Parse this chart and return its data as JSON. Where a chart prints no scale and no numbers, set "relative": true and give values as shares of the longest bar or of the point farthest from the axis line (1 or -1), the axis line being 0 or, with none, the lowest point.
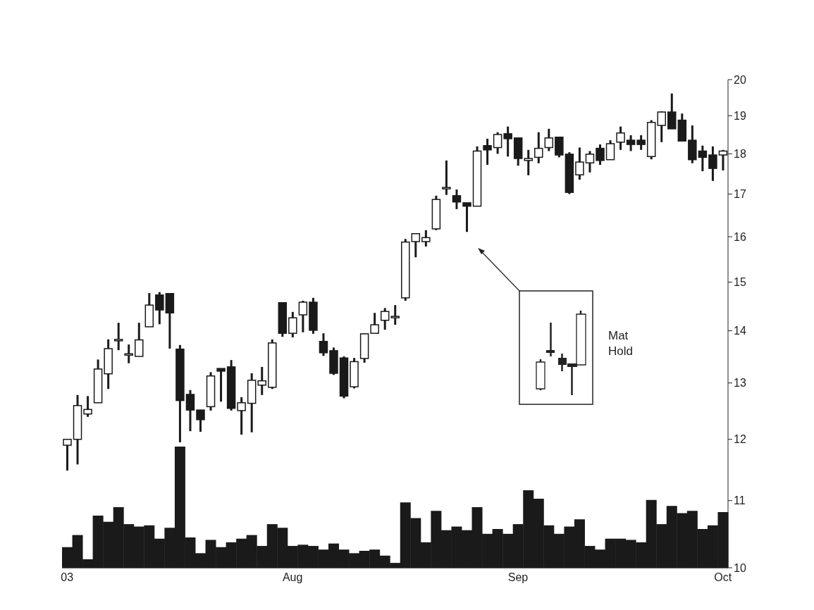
{
  "chart_data": [
    {
      "type": "candlestick",
      "log": true,
      "color": "#1a1a1a",
      "ylim": [
        10,
        20
      ],
      "yticks": [
        10,
        11,
        12,
        13,
        14,
        15,
        16,
        17,
        18,
        19,
        20
      ],
      "tick_labels": "y",
      "annotations": [
        "Mat Hold"
      ],
      "categories": [
        null,
        null,
        null,
        null,
        null,
        null,
        null,
        null,
        null,
        null,
        null,
        null,
        null,
        null,
        null,
        null,
        null,
        null,
        null,
        null,
        null,
        null,
        null,
        null,
        null,
        null,
        null,
        null,
        null,
        null,
        null,
        null,
        null,
        null,
        null,
        null,
        null,
        null,
        null,
        null,
        null,
        null,
        null,
        null,
        null,
        null,
        null,
        null,
        null,
        null,
        null,
        null,
        null,
        null,
        null,
        null,
        null,
        null,
        null,
        null,
        null,
        null,
        null,
        null,
        null
      ],
      "ohlc": [
        [
          11.9,
          12.0,
          11.48,
          12.0
        ],
        [
          12.0,
          12.78,
          11.58,
          12.59
        ],
        [
          12.44,
          12.76,
          12.39,
          12.52
        ],
        [
          12.64,
          13.44,
          12.64,
          13.26
        ],
        [
          13.17,
          13.83,
          12.89,
          13.65
        ],
        [
          13.83,
          14.16,
          13.62,
          13.83
        ],
        [
          13.55,
          13.73,
          13.37,
          13.55
        ],
        [
          13.5,
          14.16,
          13.5,
          13.82
        ],
        [
          14.08,
          14.77,
          14.08,
          14.52
        ],
        [
          14.73,
          14.79,
          14.13,
          14.42
        ],
        [
          14.76,
          14.76,
          13.65,
          14.36
        ],
        [
          13.64,
          13.72,
          11.95,
          12.68
        ],
        [
          12.79,
          12.87,
          12.14,
          12.51
        ],
        [
          12.51,
          12.51,
          12.13,
          12.34
        ],
        [
          12.57,
          13.2,
          12.5,
          13.13
        ],
        [
          13.27,
          13.27,
          12.66,
          13.22
        ],
        [
          13.3,
          13.43,
          12.5,
          12.54
        ],
        [
          12.5,
          12.74,
          12.08,
          12.64
        ],
        [
          12.63,
          13.18,
          12.12,
          13.05
        ],
        [
          12.96,
          13.3,
          12.78,
          13.04
        ],
        [
          12.92,
          13.83,
          12.89,
          13.76
        ],
        [
          14.57,
          14.57,
          13.88,
          13.95
        ],
        [
          13.95,
          14.38,
          13.87,
          14.26
        ],
        [
          14.32,
          14.61,
          13.97,
          14.58
        ],
        [
          14.58,
          14.67,
          13.94,
          14.01
        ],
        [
          13.79,
          13.95,
          13.51,
          13.57
        ],
        [
          13.61,
          13.67,
          13.15,
          13.18
        ],
        [
          13.47,
          13.5,
          12.72,
          12.76
        ],
        [
          12.93,
          13.47,
          12.9,
          13.4
        ],
        [
          13.46,
          13.95,
          13.38,
          13.94
        ],
        [
          13.95,
          14.36,
          13.95,
          14.12
        ],
        [
          14.21,
          14.46,
          14.02,
          14.39
        ],
        [
          14.29,
          14.52,
          14.12,
          14.29
        ],
        [
          14.67,
          15.95,
          14.61,
          15.88
        ],
        [
          15.89,
          16.07,
          15.54,
          16.07
        ],
        [
          15.89,
          16.15,
          15.78,
          15.98
        ],
        [
          16.18,
          16.96,
          16.15,
          16.87
        ],
        [
          17.16,
          17.83,
          16.98,
          17.16
        ],
        [
          16.96,
          17.11,
          16.64,
          16.81
        ],
        [
          16.79,
          16.79,
          16.11,
          16.71
        ],
        [
          16.71,
          18.19,
          16.71,
          18.07
        ],
        [
          18.21,
          18.39,
          17.72,
          18.1
        ],
        [
          18.16,
          18.56,
          18.0,
          18.5
        ],
        [
          18.52,
          18.71,
          17.93,
          18.39
        ],
        [
          18.41,
          18.41,
          17.7,
          17.88
        ],
        [
          17.83,
          18.1,
          17.46,
          17.88
        ],
        [
          17.91,
          18.56,
          17.76,
          18.14
        ],
        [
          18.16,
          18.65,
          18.07,
          18.41
        ],
        [
          18.43,
          18.43,
          17.91,
          17.97
        ],
        [
          17.99,
          18.04,
          17.0,
          17.04
        ],
        [
          17.47,
          18.16,
          17.35,
          17.79
        ],
        [
          17.77,
          18.07,
          17.53,
          17.99
        ],
        [
          18.14,
          18.24,
          17.72,
          17.83
        ],
        [
          17.85,
          18.35,
          17.85,
          18.26
        ],
        [
          18.3,
          18.71,
          18.1,
          18.54
        ],
        [
          18.35,
          18.48,
          18.07,
          18.24
        ],
        [
          18.35,
          18.48,
          18.1,
          18.24
        ],
        [
          17.93,
          18.88,
          17.86,
          18.82
        ],
        [
          18.74,
          19.12,
          18.3,
          19.1
        ],
        [
          19.1,
          19.61,
          18.65,
          18.65
        ],
        [
          18.88,
          19.06,
          18.33,
          18.33
        ],
        [
          18.35,
          18.74,
          17.76,
          17.85
        ],
        [
          18.07,
          18.21,
          17.56,
          17.91
        ],
        [
          17.97,
          18.19,
          17.32,
          17.63
        ],
        [
          17.97,
          18.1,
          17.58,
          18.07
        ]
      ]
    },
    {
      "type": "bar",
      "relative": true,
      "color": "#1a1a1a",
      "tick_labels": "x",
      "categories": [
        "03",
        null,
        null,
        null,
        null,
        null,
        null,
        null,
        null,
        null,
        null,
        null,
        null,
        null,
        null,
        null,
        null,
        null,
        null,
        null,
        null,
        null,
        "Aug",
        null,
        null,
        null,
        null,
        null,
        null,
        null,
        null,
        null,
        null,
        null,
        null,
        null,
        null,
        null,
        null,
        null,
        null,
        null,
        null,
        null,
        "Sep",
        null,
        null,
        null,
        null,
        null,
        null,
        null,
        null,
        null,
        null,
        null,
        null,
        null,
        null,
        null,
        null,
        null,
        null,
        null,
        "Oct"
      ],
      "values": [
        0.17,
        0.27,
        0.07,
        0.43,
        0.38,
        0.5,
        0.36,
        0.34,
        0.35,
        0.24,
        0.33,
        1,
        0.25,
        0.12,
        0.23,
        0.17,
        0.21,
        0.24,
        0.27,
        0.18,
        0.36,
        0.33,
        0.18,
        0.19,
        0.18,
        0.15,
        0.2,
        0.15,
        0.12,
        0.14,
        0.15,
        0.1,
        0.04,
        0.54,
        0.41,
        0.21,
        0.47,
        0.31,
        0.34,
        0.31,
        0.5,
        0.28,
        0.32,
        0.28,
        0.36,
        0.64,
        0.57,
        0.35,
        0.28,
        0.34,
        0.4,
        0.18,
        0.15,
        0.24,
        0.24,
        0.23,
        0.21,
        0.56,
        0.36,
        0.51,
        0.45,
        0.47,
        0.32,
        0.35,
        0.46
      ]
    }
  ]
}
